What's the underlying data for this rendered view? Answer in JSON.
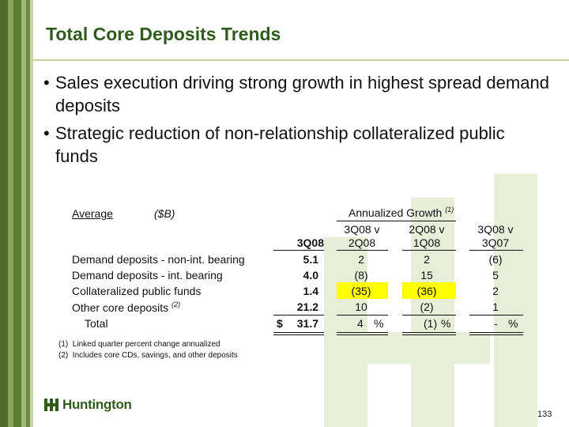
{
  "slide": {
    "title": "Total Core Deposits Trends",
    "bullets": [
      "Sales execution driving strong growth in highest spread demand deposits",
      "Strategic reduction of non-relationship collateralized public funds"
    ],
    "page_number": "133",
    "logo_text": "Huntington",
    "logo_icon": "huntington-logo-icon"
  },
  "table": {
    "header_average": "Average",
    "header_unit": "($B)",
    "header_group": "Annualized Growth",
    "header_group_note": "(1)",
    "col_3q08": "3Q08",
    "col_a_line1": "3Q08 v",
    "col_a_line2": "2Q08",
    "col_b_line1": "2Q08 v",
    "col_b_line2": "1Q08",
    "col_c_line1": "3Q08 v",
    "col_c_line2": "3Q07",
    "rows": [
      {
        "label": "Demand deposits - non-int. bearing",
        "note": "",
        "value": "5.1",
        "a": "2",
        "b": "2",
        "c": "(6)"
      },
      {
        "label": "Demand deposits - int. bearing",
        "note": "",
        "value": "4.0",
        "a": "(8)",
        "b": "15",
        "c": "5"
      },
      {
        "label": "Collateralized public funds",
        "note": "",
        "value": "1.4",
        "a": "(35)",
        "b": "(36)",
        "c": "2"
      },
      {
        "label": "Other core deposits",
        "note": "(2)",
        "value": "21.2",
        "a": "10",
        "b": "(2)",
        "c": "1"
      }
    ],
    "total": {
      "label": "Total",
      "dollar": "$",
      "value": "31.7",
      "a": "4",
      "b": "(1)",
      "c": "-",
      "pct": "%"
    },
    "highlight_color": "#ffff00"
  },
  "footnotes": [
    {
      "num": "(1)",
      "text": "Linked quarter percent change annualized"
    },
    {
      "num": "(2)",
      "text": "Includes core CDs, savings, and other deposits"
    }
  ],
  "colors": {
    "title": "#2f5c1c",
    "stripe_dark": "#4d6b2a",
    "watermark": "#e9eed9"
  }
}
